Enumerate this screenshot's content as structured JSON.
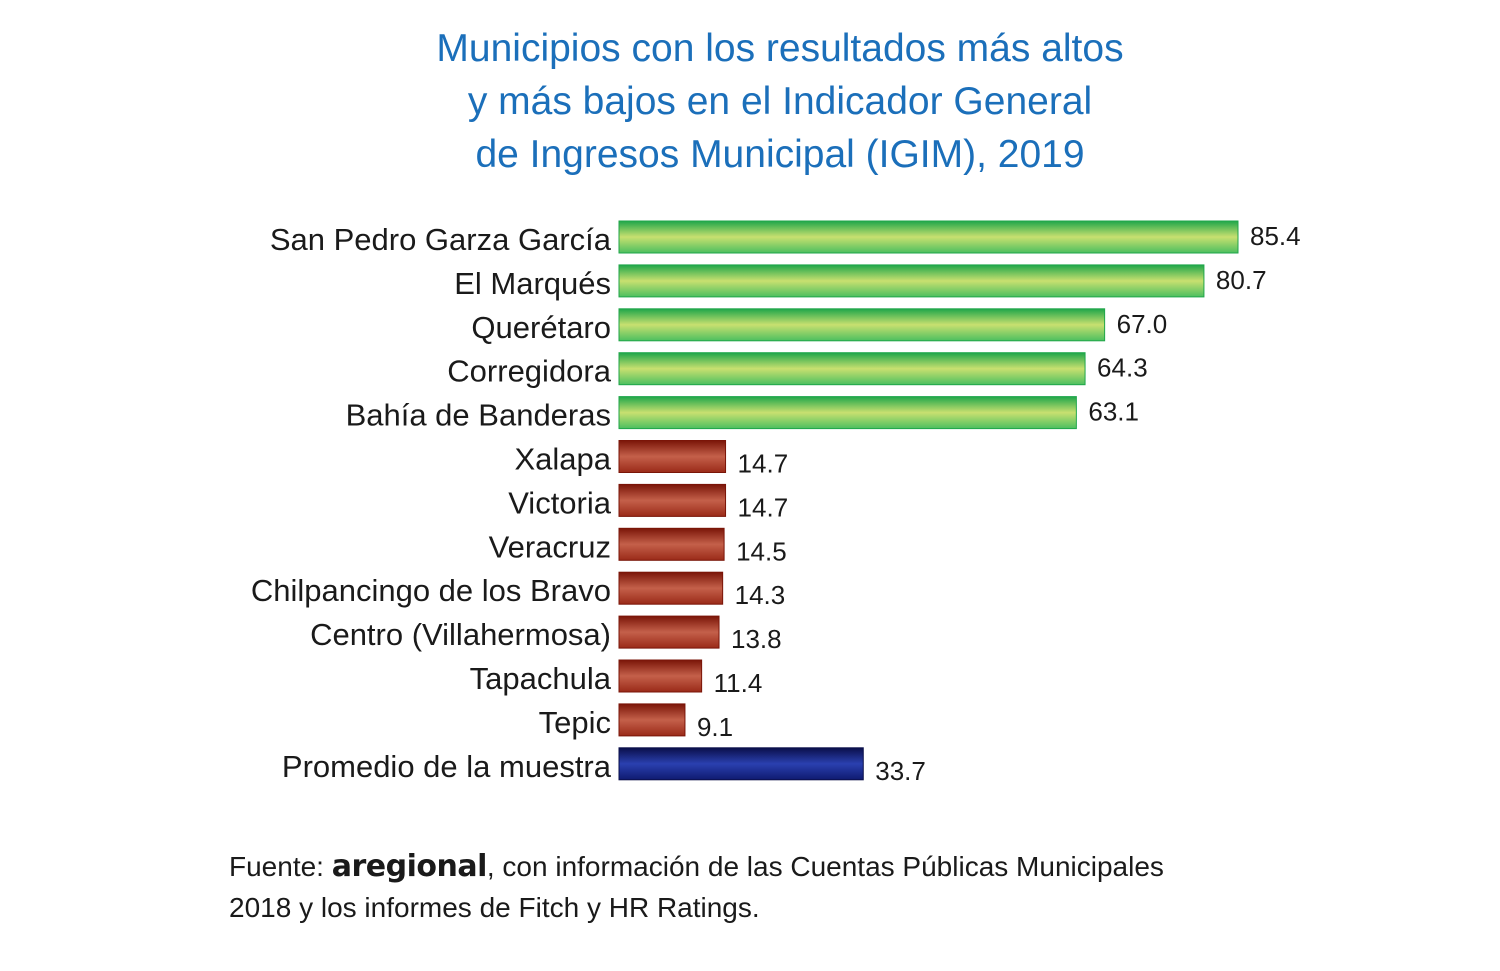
{
  "chart_data": {
    "type": "bar",
    "orientation": "horizontal",
    "title": "Municipios con los resultados más altos y más bajos en el Indicador General de Ingresos Municipal (IGIM), 2019",
    "title_lines": [
      "Municipios con los resultados más altos",
      "y más bajos en el Indicador General",
      "de Ingresos Municipal (IGIM), 2019"
    ],
    "xlabel": "",
    "ylabel": "",
    "xlim": [
      0,
      85.4
    ],
    "grid": false,
    "categories": [
      "San Pedro Garza García",
      "El Marqués",
      "Querétaro",
      "Corregidora",
      "Bahía de Banderas",
      "Xalapa",
      "Victoria",
      "Veracruz",
      "Chilpancingo de los Bravo",
      "Centro (Villahermosa)",
      "Tapachula",
      "Tepic",
      "Promedio de la muestra"
    ],
    "values": [
      85.4,
      80.7,
      67.0,
      64.3,
      63.1,
      14.7,
      14.7,
      14.5,
      14.3,
      13.8,
      11.4,
      9.1,
      33.7
    ],
    "value_labels": [
      "85.4",
      "80.7",
      "67.0",
      "64.3",
      "63.1",
      "14.7",
      "14.7",
      "14.5",
      "14.3",
      "13.8",
      "11.4",
      "9.1",
      "33.7"
    ],
    "groups": [
      "high",
      "high",
      "high",
      "high",
      "high",
      "low",
      "low",
      "low",
      "low",
      "low",
      "low",
      "low",
      "average"
    ],
    "group_colors": {
      "high": {
        "edge": "#1fa64a",
        "mid": "#c8e070",
        "base": "#4cbf60"
      },
      "low": {
        "edge": "#7a1508",
        "mid": "#c4604a",
        "base": "#9a2a18"
      },
      "average": {
        "edge": "#0a0f4a",
        "mid": "#2a40b0",
        "base": "#0f1a70"
      }
    }
  },
  "source": {
    "prefix": "Fuente: ",
    "brand": "aregional",
    "line1_rest": ", con información de las Cuentas Públicas Municipales",
    "line2": "2018 y los informes de Fitch y HR Ratings."
  }
}
